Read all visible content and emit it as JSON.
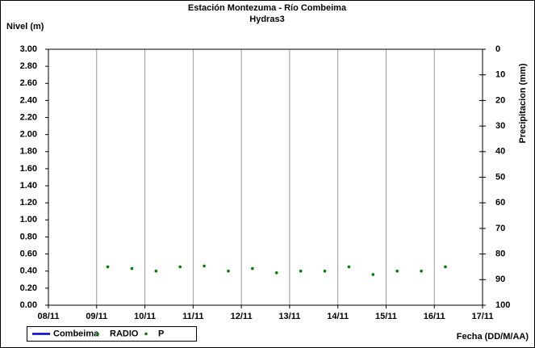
{
  "chart_data": {
    "type": "scatter",
    "title": "Estación Montezuma - Río Combeima",
    "subtitle": "Hydras3",
    "y_label": "Nivel (m)",
    "y2_label": "Precipitacion (mm)",
    "x_label": "Fecha (DD/M/AA)",
    "x": [
      9.23,
      9.73,
      10.23,
      10.73,
      11.23,
      11.73,
      12.23,
      12.73,
      13.23,
      13.73,
      14.23,
      14.73,
      15.23,
      15.73,
      16.23
    ],
    "series": [
      {
        "name": "Combeima",
        "color": "#0000cc",
        "mode": "line",
        "values": [
          null,
          null,
          null,
          null,
          null,
          null,
          null,
          null,
          null,
          null,
          null,
          null,
          null,
          null,
          null
        ]
      },
      {
        "name": "RADIO",
        "color": "#008000",
        "mode": "marker",
        "values": [
          0.45,
          0.43,
          0.4,
          0.45,
          0.46,
          0.4,
          0.43,
          0.38,
          0.4,
          0.4,
          0.45,
          0.36,
          0.4,
          0.4,
          0.45
        ]
      },
      {
        "name": "P",
        "color": "#008000",
        "mode": "marker",
        "axis": "y2",
        "values": [
          null,
          null,
          null,
          null,
          null,
          null,
          null,
          null,
          null,
          null,
          null,
          null,
          null,
          null,
          null
        ]
      }
    ],
    "xlim": [
      8,
      17
    ],
    "xticks": [
      {
        "value": 8,
        "label": "08/11"
      },
      {
        "value": 9,
        "label": "09/11"
      },
      {
        "value": 10,
        "label": "10/11"
      },
      {
        "value": 11,
        "label": "11/11"
      },
      {
        "value": 12,
        "label": "12/11"
      },
      {
        "value": 13,
        "label": "13/11"
      },
      {
        "value": 14,
        "label": "14/11"
      },
      {
        "value": 15,
        "label": "15/11"
      },
      {
        "value": 16,
        "label": "16/11"
      },
      {
        "value": 17,
        "label": "17/11"
      }
    ],
    "ylim": [
      0,
      3
    ],
    "yticks": [
      {
        "value": 0,
        "label": "0.00"
      },
      {
        "value": 0.2,
        "label": "0.20"
      },
      {
        "value": 0.4,
        "label": "0.40"
      },
      {
        "value": 0.6,
        "label": "0.60"
      },
      {
        "value": 0.8,
        "label": "0.80"
      },
      {
        "value": 1,
        "label": "1.00"
      },
      {
        "value": 1.2,
        "label": "1.20"
      },
      {
        "value": 1.4,
        "label": "1.40"
      },
      {
        "value": 1.6,
        "label": "1.60"
      },
      {
        "value": 1.8,
        "label": "1.80"
      },
      {
        "value": 2,
        "label": "2.00"
      },
      {
        "value": 2.2,
        "label": "2.20"
      },
      {
        "value": 2.4,
        "label": "2.40"
      },
      {
        "value": 2.6,
        "label": "2.60"
      },
      {
        "value": 2.8,
        "label": "2.80"
      },
      {
        "value": 3,
        "label": "3.00"
      }
    ],
    "y2lim": [
      100,
      0
    ],
    "y2ticks": [
      0,
      10,
      20,
      30,
      40,
      50,
      60,
      70,
      80,
      90,
      100
    ],
    "grid": "x",
    "legend": "bottom-left"
  }
}
